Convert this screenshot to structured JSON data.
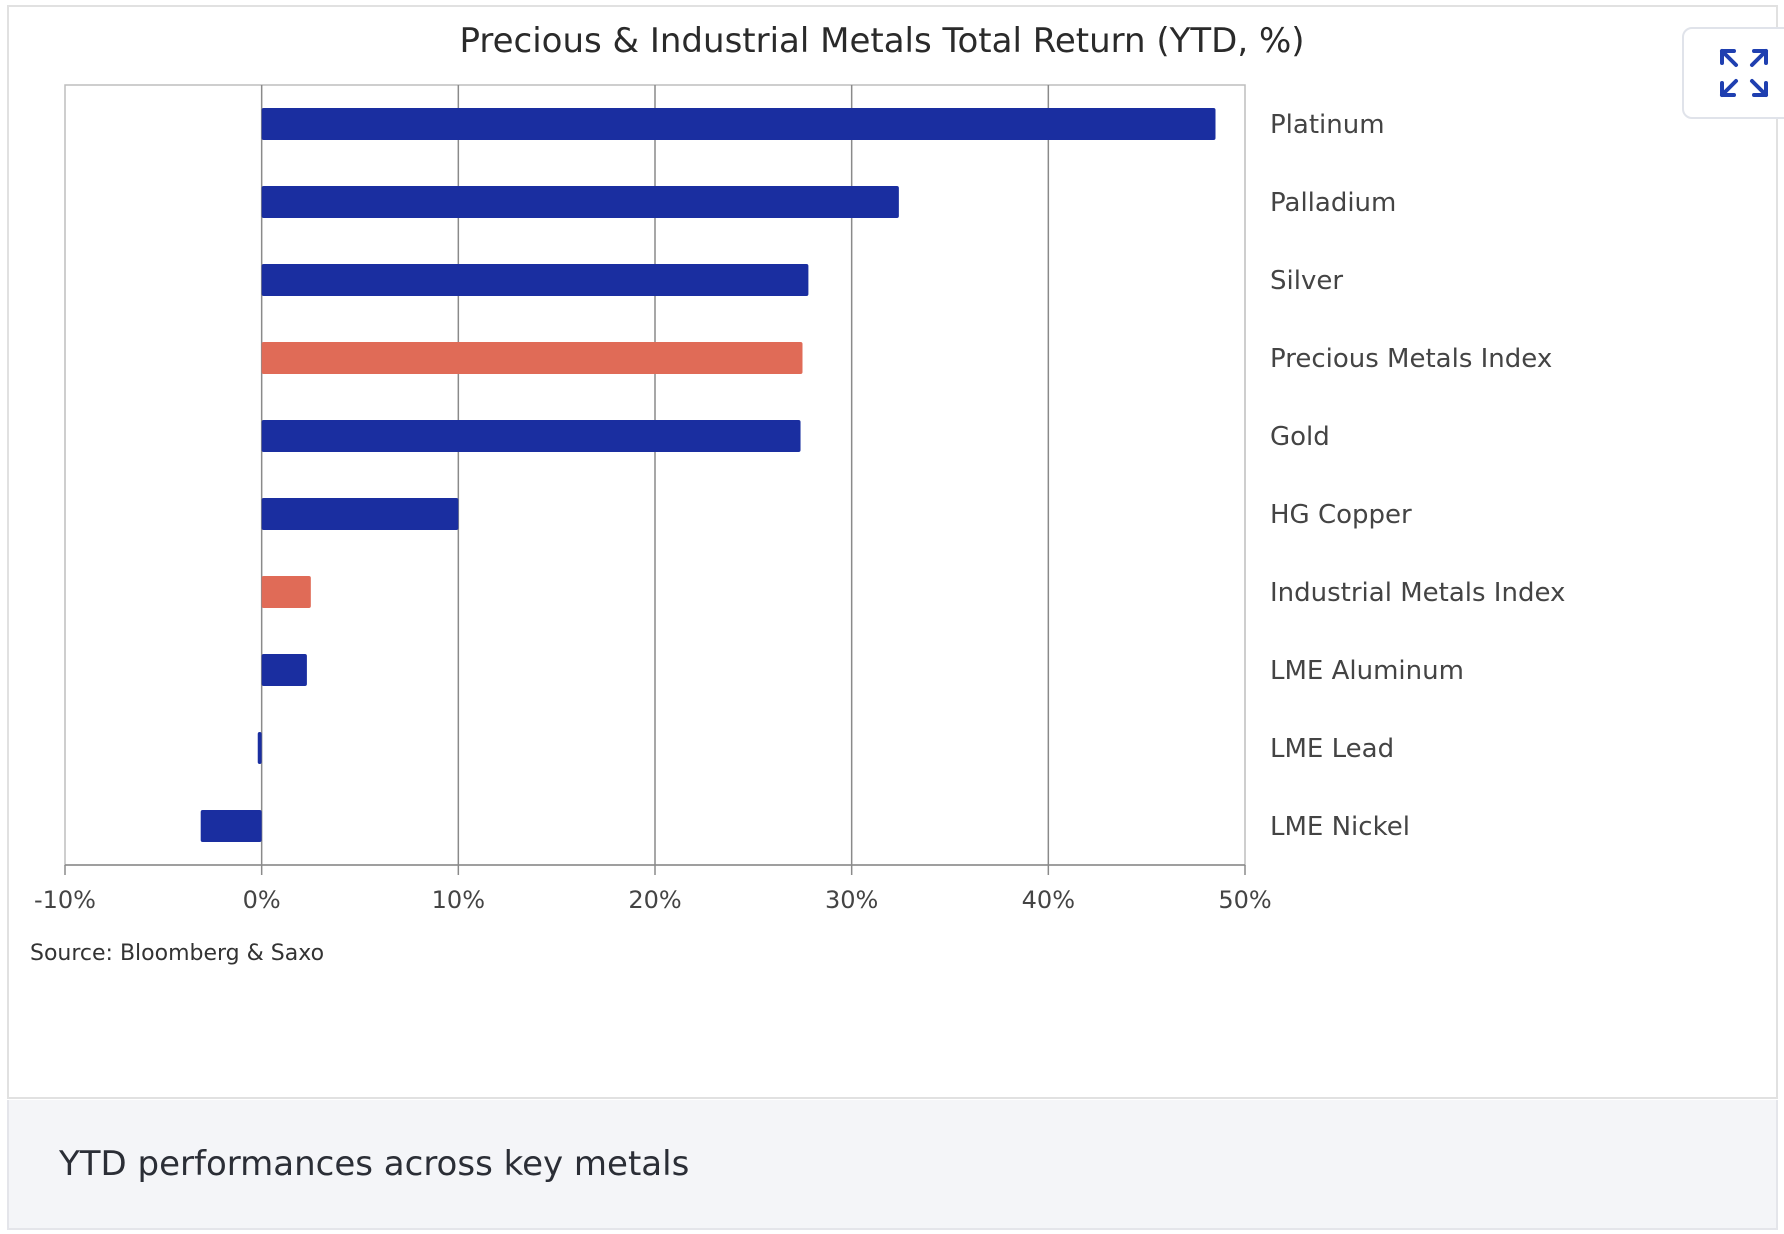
{
  "chart_data": {
    "type": "bar",
    "orientation": "horizontal",
    "title": "Precious & Industrial Metals Total Return (YTD, %)",
    "categories": [
      "Platinum",
      "Palladium",
      "Silver",
      "Precious Metals Index",
      "Gold",
      "HG Copper",
      "Industrial Metals Index",
      "LME Aluminum",
      "LME Lead",
      "LME Nickel"
    ],
    "values": [
      48.5,
      32.4,
      27.8,
      27.5,
      27.4,
      10.0,
      2.5,
      2.3,
      -0.2,
      -3.1
    ],
    "bar_colors": [
      "#1a2ea0",
      "#1a2ea0",
      "#1a2ea0",
      "#e06b57",
      "#1a2ea0",
      "#1a2ea0",
      "#e06b57",
      "#1a2ea0",
      "#1a2ea0",
      "#1a2ea0"
    ],
    "xlim": [
      -10,
      50
    ],
    "x_ticks": [
      -10,
      0,
      10,
      20,
      30,
      40,
      50
    ],
    "x_tick_labels": [
      "-10%",
      "0%",
      "10%",
      "20%",
      "30%",
      "40%",
      "50%"
    ],
    "xlabel": "",
    "ylabel": "",
    "grid": true,
    "legend": "none",
    "source": "Source: Bloomberg & Saxo"
  },
  "caption": "YTD performances across key metals",
  "expand_button": {
    "icon": "expand-icon",
    "color": "#1f3fb0"
  }
}
